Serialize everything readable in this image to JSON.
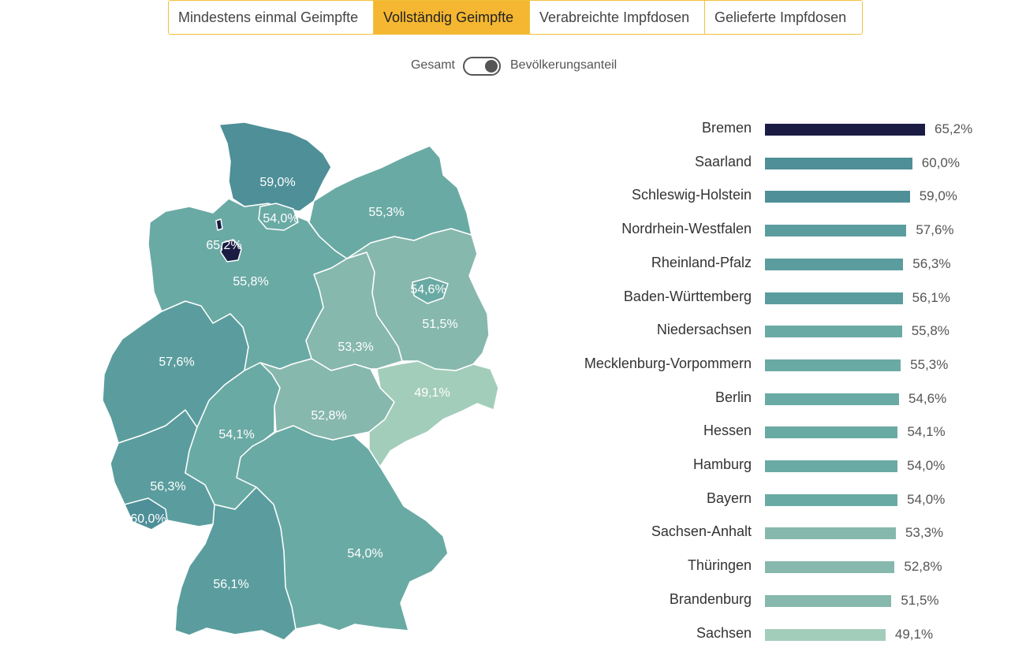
{
  "tabs": [
    {
      "label": "Mindestens einmal Geimpfte",
      "active": false
    },
    {
      "label": "Vollständig Geimpfte",
      "active": true
    },
    {
      "label": "Verabreichte Impfdosen",
      "active": false
    },
    {
      "label": "Gelieferte Impfdosen",
      "active": false
    }
  ],
  "toggle": {
    "left_label": "Gesamt",
    "right_label": "Bevölkerungsanteil",
    "state": "Bevölkerungsanteil"
  },
  "colors": {
    "accent": "#f5b731",
    "max": "#1a1c44",
    "scale": [
      "#a3cdbb",
      "#87b8ad",
      "#6aaaa4",
      "#5b9d9e",
      "#4e8f98",
      "#3e7d8c",
      "#346e82",
      "#1a1c44"
    ]
  },
  "chart_data": {
    "type": "bar",
    "orientation": "horizontal",
    "title": "",
    "xlabel": "",
    "ylabel": "",
    "xlim": [
      0,
      65.2
    ],
    "categories": [
      "Bremen",
      "Saarland",
      "Schleswig-Holstein",
      "Nordrhein-Westfalen",
      "Rheinland-Pfalz",
      "Baden-Württemberg",
      "Niedersachsen",
      "Mecklenburg-Vorpommern",
      "Berlin",
      "Hessen",
      "Hamburg",
      "Bayern",
      "Sachsen-Anhalt",
      "Thüringen",
      "Brandenburg",
      "Sachsen"
    ],
    "values": [
      65.2,
      60.0,
      59.0,
      57.6,
      56.3,
      56.1,
      55.8,
      55.3,
      54.6,
      54.1,
      54.0,
      54.0,
      53.3,
      52.8,
      51.5,
      49.1
    ],
    "value_labels": [
      "65,2%",
      "60,0%",
      "59,0%",
      "57,6%",
      "56,3%",
      "56,1%",
      "55,8%",
      "55,3%",
      "54,6%",
      "54,1%",
      "54,0%",
      "54,0%",
      "53,3%",
      "52,8%",
      "51,5%",
      "49,1%"
    ]
  },
  "map": {
    "type": "choropleth",
    "regions": [
      {
        "name": "Schleswig-Holstein",
        "label": "59,0%"
      },
      {
        "name": "Hamburg",
        "label": "54,0%"
      },
      {
        "name": "Mecklenburg-Vorpommern",
        "label": "55,3%"
      },
      {
        "name": "Bremen",
        "label": "65,2%"
      },
      {
        "name": "Niedersachsen",
        "label": "55,8%"
      },
      {
        "name": "Berlin",
        "label": "54,6%"
      },
      {
        "name": "Brandenburg",
        "label": "51,5%"
      },
      {
        "name": "Sachsen-Anhalt",
        "label": "53,3%"
      },
      {
        "name": "Nordrhein-Westfalen",
        "label": "57,6%"
      },
      {
        "name": "Sachsen",
        "label": "49,1%"
      },
      {
        "name": "Thüringen",
        "label": "52,8%"
      },
      {
        "name": "Hessen",
        "label": "54,1%"
      },
      {
        "name": "Rheinland-Pfalz",
        "label": "56,3%"
      },
      {
        "name": "Saarland",
        "label": "60,0%"
      },
      {
        "name": "Bayern",
        "label": "54,0%"
      },
      {
        "name": "Baden-Württemberg",
        "label": "56,1%"
      }
    ]
  }
}
